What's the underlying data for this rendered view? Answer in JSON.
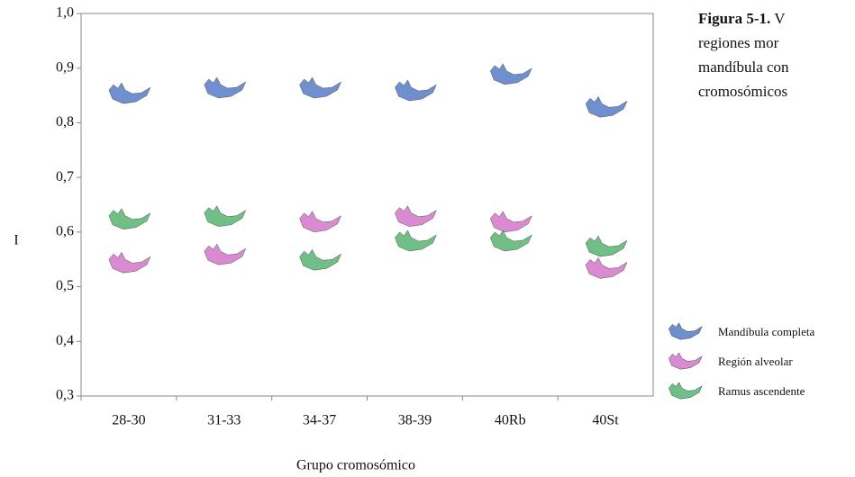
{
  "chart_data": {
    "type": "scatter",
    "y_label": "I",
    "x_label": "Grupo cromosómico",
    "categories": [
      "28-30",
      "31-33",
      "34-37",
      "38-39",
      "40Rb",
      "40St"
    ],
    "series": [
      {
        "name": "Mandíbula completa",
        "color": "#6f8fcf",
        "values": [
          0.85,
          0.86,
          0.86,
          0.855,
          0.885,
          0.825
        ]
      },
      {
        "name": "Región alveolar",
        "color": "#d98ad0",
        "values": [
          0.54,
          0.555,
          0.615,
          0.625,
          0.615,
          0.53
        ]
      },
      {
        "name": "Ramus ascendente",
        "color": "#6fbf86",
        "values": [
          0.62,
          0.625,
          0.545,
          0.58,
          0.58,
          0.57
        ]
      }
    ],
    "ylim": [
      0.3,
      1.0
    ],
    "yticks": [
      {
        "value": 0.3,
        "label": "0,3"
      },
      {
        "value": 0.4,
        "label": "0,4"
      },
      {
        "value": 0.5,
        "label": "0,5"
      },
      {
        "value": 0.6,
        "label": "0,6"
      },
      {
        "value": 0.7,
        "label": "0,7"
      },
      {
        "value": 0.8,
        "label": "0,8"
      },
      {
        "value": 0.9,
        "label": "0,9"
      },
      {
        "value": 1.0,
        "label": "1,0"
      }
    ],
    "caption": {
      "bold": "Figura 5-1.",
      "lines": [
        " V",
        "regiones mor",
        "mandíbula con",
        "cromosómicos"
      ]
    }
  }
}
